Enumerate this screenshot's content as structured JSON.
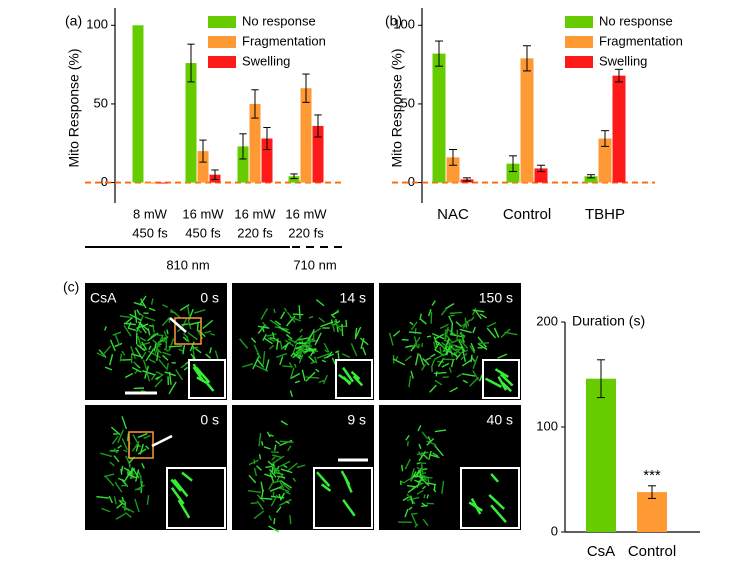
{
  "chart_data": [
    {
      "type": "bar",
      "label": "(a)",
      "ylabel": "Mito Response (%)",
      "categories": [
        [
          "8 mW",
          "450 fs"
        ],
        [
          "16 mW",
          "450 fs"
        ],
        [
          "16 mW",
          "220 fs"
        ],
        [
          "16 mW",
          "220 fs"
        ]
      ],
      "series": [
        {
          "name": "No response",
          "color": "#66cc00",
          "values": [
            100,
            76,
            23,
            4
          ],
          "errors": [
            0,
            12,
            8,
            1.5
          ]
        },
        {
          "name": "Fragmentation",
          "color": "#ff9933",
          "values": [
            0,
            20,
            50,
            60
          ],
          "errors": [
            0,
            7,
            9,
            9
          ]
        },
        {
          "name": "Swelling",
          "color": "#ff1a1a",
          "values": [
            0,
            5,
            28,
            36
          ],
          "errors": [
            0,
            3,
            7,
            7
          ]
        }
      ],
      "groups": [
        "810 nm",
        "710 nm"
      ],
      "ylim": [
        -13,
        111
      ],
      "yticks": [
        0,
        50,
        100
      ],
      "hline": 0,
      "hline_color": "#ff6600"
    },
    {
      "type": "bar",
      "label": "(b)",
      "ylabel": "Mito Response (%)",
      "categories": [
        [
          "NAC"
        ],
        [
          "Control"
        ],
        [
          "TBHP"
        ]
      ],
      "series": [
        {
          "name": "No response",
          "color": "#66cc00",
          "values": [
            82,
            12,
            4
          ],
          "errors": [
            8,
            5,
            1
          ]
        },
        {
          "name": "Fragmentation",
          "color": "#ff9933",
          "values": [
            16,
            79,
            28
          ],
          "errors": [
            5,
            8,
            5
          ]
        },
        {
          "name": "Swelling",
          "color": "#ff1a1a",
          "values": [
            2,
            9,
            68
          ],
          "errors": [
            1,
            2,
            4
          ]
        }
      ],
      "ylim": [
        -13,
        111
      ],
      "yticks": [
        0,
        50,
        100
      ],
      "hline": 0,
      "hline_color": "#ff6600"
    },
    {
      "type": "bar",
      "title": "Duration (s)",
      "categories": [
        [
          "CsA"
        ],
        [
          "Control"
        ]
      ],
      "series": [
        {
          "colors": [
            "#66cc00",
            "#ff9933"
          ],
          "values": [
            146,
            38
          ],
          "errors": [
            18,
            6
          ]
        }
      ],
      "annotation": "***",
      "ylim": [
        0,
        200
      ],
      "yticks": [
        0,
        100,
        200
      ]
    }
  ],
  "images": {
    "label": "(c)",
    "condition": "CsA",
    "rows": [
      [
        "0 s",
        "14 s",
        "150 s"
      ],
      [
        "0 s",
        "9 s",
        "40 s"
      ]
    ]
  }
}
